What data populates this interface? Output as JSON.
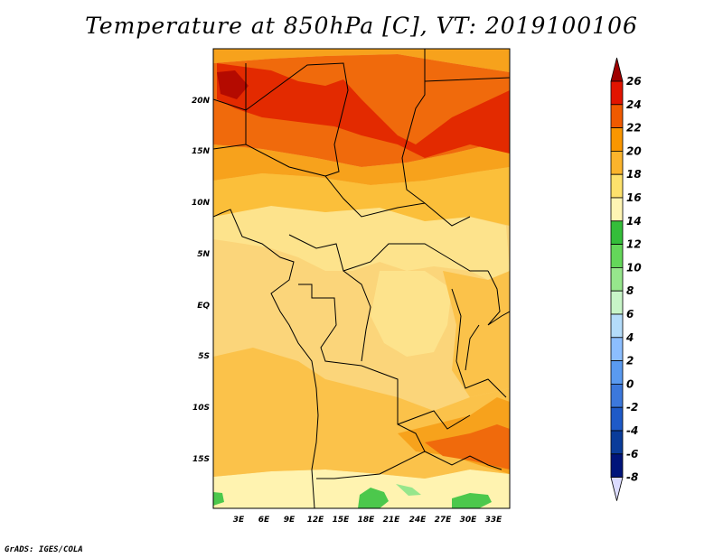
{
  "title": "Temperature at 850hPa [C], VT: 2019100106",
  "credit": "GrADS: IGES/COLA",
  "map": {
    "lat_labels": [
      "20N",
      "15N",
      "10N",
      "5N",
      "EQ",
      "5S",
      "10S",
      "15S"
    ],
    "lon_labels": [
      "3E",
      "6E",
      "9E",
      "12E",
      "15E",
      "18E",
      "21E",
      "24E",
      "27E",
      "30E",
      "33E"
    ]
  },
  "colorbar": {
    "labels": [
      "26",
      "24",
      "22",
      "20",
      "18",
      "16",
      "14",
      "12",
      "10",
      "8",
      "6",
      "4",
      "2",
      "0",
      "-2",
      "-4",
      "-6",
      "-8"
    ],
    "colors": [
      "#a00000",
      "#e11400",
      "#f05a00",
      "#fa9600",
      "#fbb42c",
      "#fde16c",
      "#fff5b4",
      "#34be3a",
      "#64d75a",
      "#96e68c",
      "#c8f5c8",
      "#b4dcfa",
      "#8cbeff",
      "#5a9af0",
      "#3c78dc",
      "#1e5ac8",
      "#0a3c9a",
      "#00147a",
      "#dcdcff"
    ]
  }
}
